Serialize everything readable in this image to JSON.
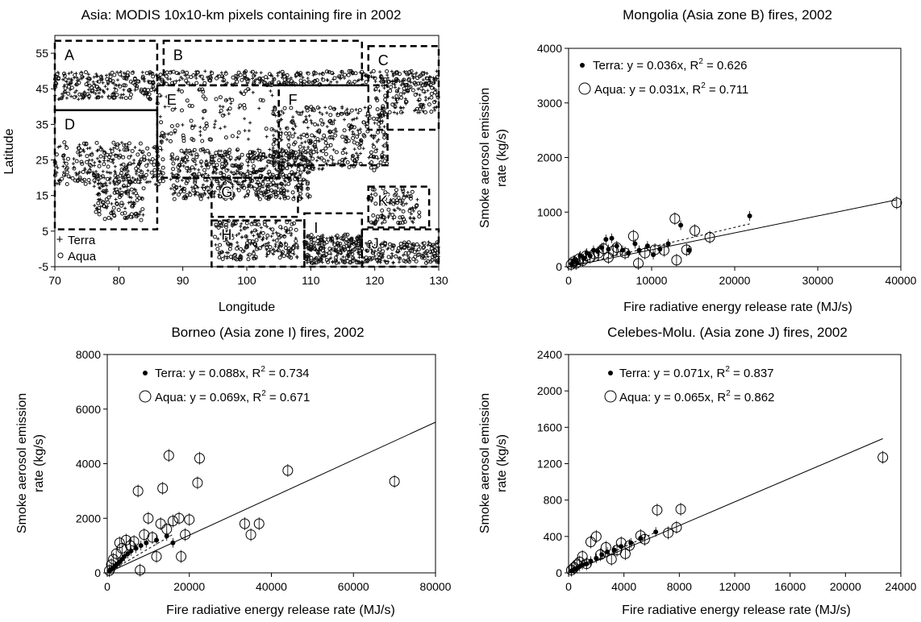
{
  "chart_data": [
    {
      "type": "scatter",
      "title": "Asia: MODIS 10x10-km pixels containing fire in 2002",
      "xlabel": "Longitude",
      "ylabel": "Latitude",
      "xlim": [
        70,
        130
      ],
      "ylim": [
        -5,
        60
      ],
      "xticks": [
        "70",
        "80",
        "90",
        "100",
        "110",
        "120",
        "130"
      ],
      "yticks": [
        "-5",
        "5",
        "15",
        "25",
        "35",
        "45",
        "55"
      ],
      "legend": [
        {
          "name": "Terra",
          "marker": "+"
        },
        {
          "name": "Aqua",
          "marker": "o"
        }
      ],
      "legend_position": "bottom-left",
      "zones": [
        {
          "label": "A",
          "lon": [
            70,
            86
          ],
          "lat": [
            39,
            58.5
          ]
        },
        {
          "label": "B",
          "lon": [
            87,
            118
          ],
          "lat": [
            46,
            58.5
          ]
        },
        {
          "label": "C",
          "lon": [
            119,
            130
          ],
          "lat": [
            33.5,
            57
          ]
        },
        {
          "label": "D",
          "lon": [
            70,
            86
          ],
          "lat": [
            5.5,
            39
          ]
        },
        {
          "label": "E",
          "lon": [
            86,
            105
          ],
          "lat": [
            20,
            46
          ]
        },
        {
          "label": "F",
          "lon": [
            105,
            122
          ],
          "lat": [
            23.5,
            46
          ]
        },
        {
          "label": "G",
          "lon": [
            94.5,
            108
          ],
          "lat": [
            9,
            20
          ]
        },
        {
          "label": "H",
          "lon": [
            94.5,
            109
          ],
          "lat": [
            -5,
            8
          ]
        },
        {
          "label": "I",
          "lon": [
            109,
            118
          ],
          "lat": [
            -5,
            10
          ]
        },
        {
          "label": "J",
          "lon": [
            118,
            130
          ],
          "lat": [
            -5,
            5.5
          ]
        },
        {
          "label": "K",
          "lon": [
            119,
            128.5
          ],
          "lat": [
            6,
            17.5
          ]
        }
      ]
    },
    {
      "type": "scatter",
      "title": "Mongolia (Asia zone B) fires, 2002",
      "xlabel": "Fire radiative energy release rate (MJ/s)",
      "ylabel": "Smoke aerosol emission rate (kg/s)",
      "xlim": [
        0,
        40000
      ],
      "ylim": [
        0,
        4000
      ],
      "xticks": [
        "0",
        "10000",
        "20000",
        "30000",
        "40000"
      ],
      "yticks": [
        "0",
        "1000",
        "2000",
        "3000",
        "4000"
      ],
      "legend_position": "top-left",
      "series": [
        {
          "name": "Terra",
          "slope": 0.036,
          "r2": 0.626,
          "fit_label": ": y = 0.036x, R",
          "r2_label": " = 0.626",
          "points": [
            [
              400,
              60
            ],
            [
              700,
              120
            ],
            [
              1000,
              80
            ],
            [
              1400,
              200
            ],
            [
              1800,
              150
            ],
            [
              2200,
              250
            ],
            [
              2600,
              200
            ],
            [
              3000,
              300
            ],
            [
              3500,
              280
            ],
            [
              4000,
              350
            ],
            [
              4500,
              500
            ],
            [
              4800,
              320
            ],
            [
              5200,
              520
            ],
            [
              5800,
              380
            ],
            [
              6500,
              300
            ],
            [
              7200,
              250
            ],
            [
              8000,
              420
            ],
            [
              8500,
              300
            ],
            [
              9500,
              380
            ],
            [
              10200,
              220
            ],
            [
              11000,
              320
            ],
            [
              12000,
              420
            ],
            [
              13500,
              760
            ],
            [
              14500,
              300
            ],
            [
              21800,
              930
            ]
          ]
        },
        {
          "name": "Aqua",
          "slope": 0.031,
          "r2": 0.711,
          "fit_label": ": y = 0.031x, R",
          "r2_label": " = 0.711",
          "points": [
            [
              300,
              40
            ],
            [
              600,
              90
            ],
            [
              900,
              60
            ],
            [
              1300,
              150
            ],
            [
              1700,
              110
            ],
            [
              2100,
              200
            ],
            [
              2600,
              170
            ],
            [
              3100,
              230
            ],
            [
              3600,
              250
            ],
            [
              4200,
              330
            ],
            [
              4800,
              170
            ],
            [
              5400,
              290
            ],
            [
              5800,
              350
            ],
            [
              6800,
              250
            ],
            [
              7800,
              560
            ],
            [
              8400,
              60
            ],
            [
              9200,
              250
            ],
            [
              10400,
              310
            ],
            [
              11500,
              300
            ],
            [
              12800,
              880
            ],
            [
              13000,
              120
            ],
            [
              14200,
              310
            ],
            [
              15200,
              660
            ],
            [
              17000,
              540
            ],
            [
              39500,
              1170
            ]
          ]
        }
      ]
    },
    {
      "type": "scatter",
      "title": "Borneo (Asia zone I) fires, 2002",
      "xlabel": "Fire radiative energy release rate (MJ/s)",
      "ylabel": "Smoke aerosol emission rate (kg/s)",
      "xlim": [
        0,
        80000
      ],
      "ylim": [
        0,
        8000
      ],
      "xticks": [
        "0",
        "20000",
        "40000",
        "60000",
        "80000"
      ],
      "yticks": [
        "0",
        "2000",
        "4000",
        "6000",
        "8000"
      ],
      "legend_position": "top-left",
      "series": [
        {
          "name": "Terra",
          "slope": 0.088,
          "r2": 0.734,
          "fit_label": ": y = 0.088x, R",
          "r2_label": " = 0.734",
          "points": [
            [
              500,
              60
            ],
            [
              900,
              120
            ],
            [
              1400,
              180
            ],
            [
              1900,
              250
            ],
            [
              2500,
              330
            ],
            [
              3000,
              400
            ],
            [
              3600,
              500
            ],
            [
              4200,
              600
            ],
            [
              5000,
              700
            ],
            [
              5800,
              800
            ],
            [
              7000,
              900
            ],
            [
              8200,
              1000
            ],
            [
              9500,
              1100
            ],
            [
              12000,
              1200
            ],
            [
              14500,
              1350
            ],
            [
              16000,
              1100
            ]
          ]
        },
        {
          "name": "Aqua",
          "slope": 0.069,
          "r2": 0.671,
          "fit_label": ": y = 0.069x, R",
          "r2_label": " = 0.671",
          "points": [
            [
              500,
              80
            ],
            [
              1000,
              300
            ],
            [
              1500,
              500
            ],
            [
              2200,
              700
            ],
            [
              3000,
              1100
            ],
            [
              3600,
              900
            ],
            [
              4600,
              1200
            ],
            [
              5600,
              1000
            ],
            [
              6500,
              1150
            ],
            [
              7500,
              3000
            ],
            [
              8000,
              100
            ],
            [
              9000,
              1400
            ],
            [
              10000,
              2000
            ],
            [
              11000,
              1300
            ],
            [
              12000,
              600
            ],
            [
              13000,
              1800
            ],
            [
              13500,
              3100
            ],
            [
              14500,
              1600
            ],
            [
              15000,
              4300
            ],
            [
              16000,
              1900
            ],
            [
              17500,
              2000
            ],
            [
              18000,
              600
            ],
            [
              19000,
              1400
            ],
            [
              20000,
              1950
            ],
            [
              22000,
              3300
            ],
            [
              22500,
              4200
            ],
            [
              33500,
              1800
            ],
            [
              35000,
              1400
            ],
            [
              37000,
              1800
            ],
            [
              44000,
              3750
            ],
            [
              70000,
              3350
            ]
          ]
        }
      ]
    },
    {
      "type": "scatter",
      "title": "Celebes-Molu. (Asia zone J) fires, 2002",
      "xlabel": "Fire radiative energy release rate (MJ/s)",
      "ylabel": "Smoke aerosol emission rate (kg/s)",
      "xlim": [
        0,
        24000
      ],
      "ylim": [
        0,
        2400
      ],
      "xticks": [
        "0",
        "4000",
        "8000",
        "12000",
        "16000",
        "20000",
        "24000"
      ],
      "yticks": [
        "0",
        "400",
        "800",
        "1200",
        "1600",
        "2000",
        "2400"
      ],
      "legend_position": "top-left",
      "series": [
        {
          "name": "Terra",
          "slope": 0.071,
          "r2": 0.837,
          "fit_label": ": y = 0.071x, R",
          "r2_label": " = 0.837",
          "points": [
            [
              200,
              20
            ],
            [
              400,
              40
            ],
            [
              600,
              50
            ],
            [
              800,
              70
            ],
            [
              1000,
              90
            ],
            [
              1300,
              100
            ],
            [
              1600,
              130
            ],
            [
              2000,
              160
            ],
            [
              2400,
              200
            ],
            [
              2800,
              230
            ],
            [
              3300,
              250
            ],
            [
              3800,
              290
            ],
            [
              4500,
              330
            ],
            [
              5200,
              380
            ],
            [
              6300,
              450
            ]
          ]
        },
        {
          "name": "Aqua",
          "slope": 0.065,
          "r2": 0.862,
          "fit_label": ": y = 0.065x, R",
          "r2_label": " = 0.862",
          "points": [
            [
              200,
              30
            ],
            [
              400,
              60
            ],
            [
              600,
              90
            ],
            [
              800,
              120
            ],
            [
              1000,
              180
            ],
            [
              1300,
              100
            ],
            [
              1600,
              340
            ],
            [
              2000,
              400
            ],
            [
              2300,
              200
            ],
            [
              2700,
              280
            ],
            [
              3100,
              150
            ],
            [
              3500,
              250
            ],
            [
              3800,
              330
            ],
            [
              4100,
              210
            ],
            [
              4400,
              300
            ],
            [
              5200,
              410
            ],
            [
              5500,
              370
            ],
            [
              6400,
              690
            ],
            [
              7200,
              440
            ],
            [
              7800,
              500
            ],
            [
              8100,
              700
            ],
            [
              22700,
              1270
            ]
          ]
        }
      ]
    }
  ]
}
